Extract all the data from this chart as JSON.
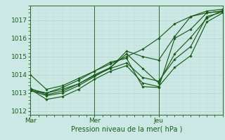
{
  "xlabel": "Pression niveau de la mer( hPa )",
  "ylim": [
    1011.8,
    1017.8
  ],
  "xlim": [
    0,
    48
  ],
  "xtick_positions": [
    0,
    16,
    32
  ],
  "xticklabels": [
    "Mar",
    "Mer",
    "Jeu"
  ],
  "yticks": [
    1012,
    1013,
    1014,
    1015,
    1016,
    1017
  ],
  "bg_color": "#cce8e4",
  "grid_major_color": "#aed4cf",
  "grid_minor_color": "#c0deda",
  "line_color": "#1a5c1a",
  "marker": "D",
  "markersize": 1.8,
  "linewidth": 0.85,
  "series": [
    [
      0,
      1014.0,
      4,
      1013.2,
      8,
      1013.4,
      12,
      1013.8,
      16,
      1014.2,
      20,
      1014.6,
      24,
      1015.0,
      28,
      1015.4,
      32,
      1016.0,
      36,
      1016.8,
      40,
      1017.2,
      44,
      1017.4,
      48,
      1017.5
    ],
    [
      0,
      1013.2,
      4,
      1013.0,
      8,
      1013.2,
      12,
      1013.5,
      16,
      1014.0,
      20,
      1014.4,
      24,
      1015.3,
      28,
      1015.0,
      32,
      1014.8,
      36,
      1016.1,
      40,
      1017.2,
      44,
      1017.5,
      48,
      1017.6
    ],
    [
      0,
      1013.1,
      4,
      1013.0,
      8,
      1013.3,
      12,
      1013.7,
      16,
      1014.2,
      20,
      1014.7,
      24,
      1014.9,
      28,
      1013.35,
      32,
      1013.3,
      36,
      1016.0,
      40,
      1016.5,
      44,
      1017.4,
      48,
      1017.5
    ],
    [
      0,
      1013.15,
      4,
      1012.85,
      8,
      1013.0,
      12,
      1013.4,
      16,
      1013.9,
      20,
      1014.4,
      24,
      1015.15,
      28,
      1014.35,
      32,
      1013.55,
      36,
      1015.15,
      40,
      1016.05,
      44,
      1017.1,
      48,
      1017.55
    ],
    [
      0,
      1013.2,
      4,
      1012.65,
      8,
      1012.8,
      12,
      1013.2,
      16,
      1013.75,
      20,
      1014.2,
      24,
      1014.5,
      28,
      1013.55,
      32,
      1013.35,
      36,
      1014.4,
      40,
      1015.05,
      44,
      1016.9,
      48,
      1017.4
    ],
    [
      0,
      1013.25,
      4,
      1012.9,
      8,
      1013.1,
      12,
      1013.5,
      16,
      1013.95,
      20,
      1014.35,
      24,
      1014.65,
      28,
      1013.85,
      32,
      1013.65,
      36,
      1014.85,
      40,
      1015.55,
      44,
      1017.2,
      48,
      1017.45
    ]
  ],
  "vline_positions": [
    0,
    16,
    32,
    48
  ],
  "vline_color": "#2a6a2a",
  "xlabel_fontsize": 7,
  "tick_fontsize": 6.5
}
